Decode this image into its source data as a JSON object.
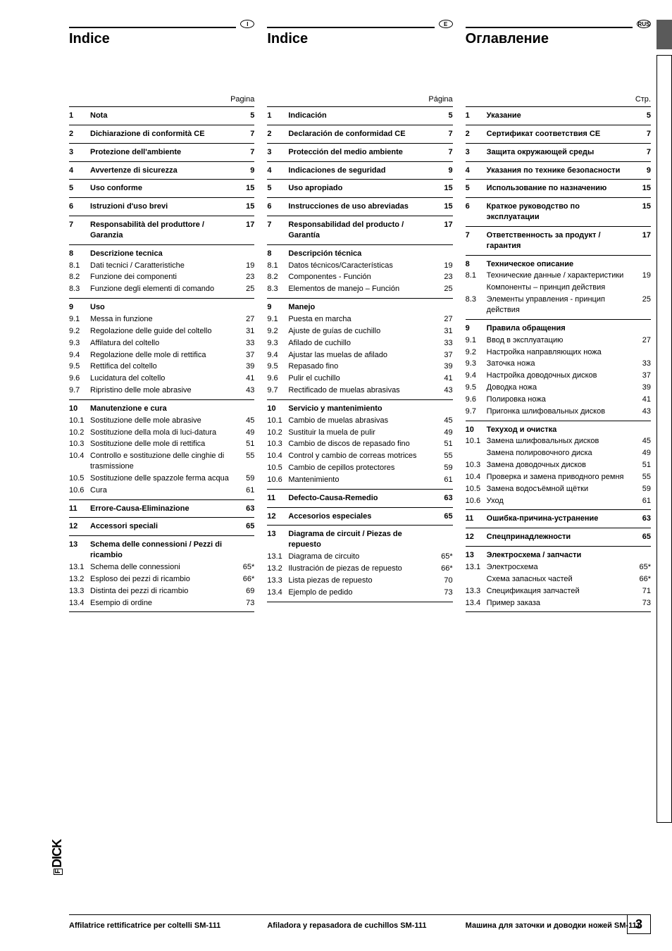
{
  "pageNumber": "3",
  "brand": "DICK",
  "columns": [
    {
      "badge": "I",
      "title": "Indice",
      "pageLabel": "Pagina",
      "footer": "Affilatrice rettificatrice per coltelli SM-111",
      "sections": [
        {
          "rule": true,
          "rows": [
            {
              "n": "1",
              "t": "Nota",
              "p": "5",
              "b": true
            }
          ]
        },
        {
          "rule": true,
          "rows": [
            {
              "n": "2",
              "t": "Dichiarazione di conformità CE",
              "p": "7",
              "b": true
            }
          ]
        },
        {
          "rule": true,
          "rows": [
            {
              "n": "3",
              "t": "Protezione dell'ambiente",
              "p": "7",
              "b": true
            }
          ]
        },
        {
          "rule": true,
          "rows": [
            {
              "n": "4",
              "t": "Avvertenze di sicurezza",
              "p": "9",
              "b": true
            }
          ]
        },
        {
          "rule": true,
          "rows": [
            {
              "n": "5",
              "t": "Uso conforme",
              "p": "15",
              "b": true
            }
          ]
        },
        {
          "rule": true,
          "rows": [
            {
              "n": "6",
              "t": "Istruzioni d'uso brevi",
              "p": "15",
              "b": true
            }
          ]
        },
        {
          "rule": true,
          "rows": [
            {
              "n": "7",
              "t": "Responsabilità del produttore / Garanzia",
              "p": "17",
              "b": true
            }
          ]
        },
        {
          "rule": true,
          "rows": [
            {
              "n": "8",
              "t": "Descrizione tecnica",
              "p": "",
              "b": true
            },
            {
              "n": "8.1",
              "t": "Dati tecnici / Caratteristiche",
              "p": "19"
            },
            {
              "n": "8.2",
              "t": "Funzione dei componenti",
              "p": "23"
            },
            {
              "n": "8.3",
              "t": "Funzione degli elementi di comando",
              "p": "25"
            }
          ]
        },
        {
          "rule": true,
          "rows": [
            {
              "n": "9",
              "t": "Uso",
              "p": "",
              "b": true
            },
            {
              "n": "9.1",
              "t": "Messa in funzione",
              "p": "27"
            },
            {
              "n": "9.2",
              "t": "Regolazione delle guide del coltello",
              "p": "31"
            },
            {
              "n": "9.3",
              "t": "Affilatura del coltello",
              "p": "33"
            },
            {
              "n": "9.4",
              "t": "Regolazione delle mole di rettifica",
              "p": "37"
            },
            {
              "n": "9.5",
              "t": "Rettifica del coltello",
              "p": "39"
            },
            {
              "n": "9.6",
              "t": "Lucidatura del coltello",
              "p": "41"
            },
            {
              "n": "9.7",
              "t": "Ripristino delle mole abrasive",
              "p": "43"
            }
          ]
        },
        {
          "rule": true,
          "rows": [
            {
              "n": "10",
              "t": "Manutenzione e cura",
              "p": "",
              "b": true
            },
            {
              "n": "10.1",
              "t": "Sostituzione delle mole abrasive",
              "p": "45"
            },
            {
              "n": "10.2",
              "t": "Sostituzione della mola di luci-datura",
              "p": "49"
            },
            {
              "n": "10.3",
              "t": "Sostituzione delle mole di rettifica",
              "p": "51"
            },
            {
              "n": "10.4",
              "t": "Controllo e sostituzione delle cinghie di trasmissione",
              "p": "55"
            },
            {
              "n": "10.5",
              "t": "Sostituzione delle spazzole ferma acqua",
              "p": "59"
            },
            {
              "n": "10.6",
              "t": "Cura",
              "p": "61"
            }
          ]
        },
        {
          "rule": true,
          "rows": [
            {
              "n": "11",
              "t": "Errore-Causa-Eliminazione",
              "p": "63",
              "b": true
            }
          ]
        },
        {
          "rule": true,
          "rows": [
            {
              "n": "12",
              "t": "Accessori speciali",
              "p": "65",
              "b": true
            }
          ]
        },
        {
          "rule": true,
          "rows": [
            {
              "n": "13",
              "t": "Schema delle connessioni / Pezzi di ricambio",
              "p": "",
              "b": true
            },
            {
              "n": "13.1",
              "t": "Schema delle connessioni",
              "p": "65*"
            },
            {
              "n": "13.2",
              "t": "Esploso dei pezzi di ricambio",
              "p": "66*"
            },
            {
              "n": "13.3",
              "t": "Distinta dei pezzi di ricambio",
              "p": "69"
            },
            {
              "n": "13.4",
              "t": "Esempio di ordine",
              "p": "73"
            }
          ]
        },
        {
          "rule": true,
          "rows": []
        }
      ]
    },
    {
      "badge": "E",
      "title": "Indice",
      "pageLabel": "Página",
      "footer": "Afiladora y repasadora de cuchillos SM-111",
      "sections": [
        {
          "rule": true,
          "rows": [
            {
              "n": "1",
              "t": "Indicación",
              "p": "5",
              "b": true
            }
          ]
        },
        {
          "rule": true,
          "rows": [
            {
              "n": "2",
              "t": "Declaración de conformidad CE",
              "p": "7",
              "b": true
            }
          ]
        },
        {
          "rule": true,
          "rows": [
            {
              "n": "3",
              "t": "Protección del medio ambiente",
              "p": "7",
              "b": true
            }
          ]
        },
        {
          "rule": true,
          "rows": [
            {
              "n": "4",
              "t": "Indicaciones de seguridad",
              "p": "9",
              "b": true
            }
          ]
        },
        {
          "rule": true,
          "rows": [
            {
              "n": "5",
              "t": "Uso apropiado",
              "p": "15",
              "b": true
            }
          ]
        },
        {
          "rule": true,
          "rows": [
            {
              "n": "6",
              "t": "Instrucciones de uso abreviadas",
              "p": "15",
              "b": true
            }
          ]
        },
        {
          "rule": true,
          "rows": [
            {
              "n": "7",
              "t": "Responsabilidad del producto / Garantía",
              "p": "17",
              "b": true
            }
          ]
        },
        {
          "rule": true,
          "rows": [
            {
              "n": "8",
              "t": "Descripción técnica",
              "p": "",
              "b": true
            },
            {
              "n": "8.1",
              "t": "Datos técnicos/Características",
              "p": "19"
            },
            {
              "n": "8.2",
              "t": "Componentes - Función",
              "p": "23"
            },
            {
              "n": "8.3",
              "t": "Elementos de manejo – Función",
              "p": "25"
            }
          ]
        },
        {
          "rule": true,
          "rows": [
            {
              "n": "9",
              "t": "Manejo",
              "p": "",
              "b": true
            },
            {
              "n": "9.1",
              "t": "Puesta en marcha",
              "p": "27"
            },
            {
              "n": "9.2",
              "t": "Ajuste de guías de cuchillo",
              "p": "31"
            },
            {
              "n": "9.3",
              "t": "Afilado de cuchillo",
              "p": "33"
            },
            {
              "n": "9.4",
              "t": "Ajustar las muelas de afilado",
              "p": "37"
            },
            {
              "n": "9.5",
              "t": "Repasado fino",
              "p": "39"
            },
            {
              "n": "9.6",
              "t": "Pulir el cuchillo",
              "p": "41"
            },
            {
              "n": "9.7",
              "t": "Rectificado de muelas abrasivas",
              "p": "43"
            }
          ]
        },
        {
          "rule": true,
          "rows": [
            {
              "n": "10",
              "t": "Servicio y mantenimiento",
              "p": "",
              "b": true
            },
            {
              "n": "10.1",
              "t": "Cambio de muelas abrasivas",
              "p": "45"
            },
            {
              "n": "10.2",
              "t": "Sustituir la muela de pulir",
              "p": "49"
            },
            {
              "n": "10.3",
              "t": "Cambio de discos de repasado fino",
              "p": "51"
            },
            {
              "n": "10.4",
              "t": "Control y cambio de correas motrices",
              "p": "55"
            },
            {
              "n": "10.5",
              "t": "Cambio de cepillos protectores",
              "p": "59"
            },
            {
              "n": "10.6",
              "t": "Mantenimiento",
              "p": "61"
            }
          ]
        },
        {
          "rule": true,
          "rows": [
            {
              "n": "11",
              "t": "Defecto-Causa-Remedio",
              "p": "63",
              "b": true
            }
          ]
        },
        {
          "rule": true,
          "rows": [
            {
              "n": "12",
              "t": "Accesorios especiales",
              "p": "65",
              "b": true
            }
          ]
        },
        {
          "rule": true,
          "rows": [
            {
              "n": "13",
              "t": "Diagrama de circuit / Piezas de repuesto",
              "p": "",
              "b": true
            },
            {
              "n": "13.1",
              "t": "Diagrama de circuito",
              "p": "65*"
            },
            {
              "n": "13.2",
              "t": "Ilustración de piezas de repuesto",
              "p": "66*"
            },
            {
              "n": "13.3",
              "t": "Lista piezas de repuesto",
              "p": "70"
            },
            {
              "n": "13.4",
              "t": "Ejemplo de pedido",
              "p": "73"
            }
          ]
        },
        {
          "rule": true,
          "rows": []
        }
      ]
    },
    {
      "badge": "RUS",
      "title": "Оглавление",
      "pageLabel": "Стр.",
      "footer": "Машина для заточки и доводки ножей SM-111",
      "sections": [
        {
          "rule": true,
          "rows": [
            {
              "n": "1",
              "t": "Указание",
              "p": "5",
              "b": true
            }
          ]
        },
        {
          "rule": true,
          "rows": [
            {
              "n": "2",
              "t": "Сертификат соответствия СЕ",
              "p": "7",
              "b": true
            }
          ]
        },
        {
          "rule": true,
          "rows": [
            {
              "n": "3",
              "t": "Защита окружающей среды",
              "p": "7",
              "b": true
            }
          ]
        },
        {
          "rule": true,
          "rows": [
            {
              "n": "4",
              "t": "Указания по технике безопасности",
              "p": "9",
              "b": true
            }
          ]
        },
        {
          "rule": true,
          "rows": [
            {
              "n": "5",
              "t": "Использование по назначению",
              "p": "15",
              "b": true
            }
          ]
        },
        {
          "rule": true,
          "rows": [
            {
              "n": "6",
              "t": "Краткое руководство по эксплуатации",
              "p": "15",
              "b": true
            }
          ]
        },
        {
          "rule": true,
          "rows": [
            {
              "n": "7",
              "t": "Ответственность за продукт / гарантия",
              "p": "17",
              "b": true
            }
          ]
        },
        {
          "rule": true,
          "rows": [
            {
              "n": "8",
              "t": "Техническое описание",
              "p": "",
              "b": true
            },
            {
              "n": "8.1",
              "t": "Технические данные / характеристики",
              "p": "19"
            },
            {
              "n": "",
              "t": "Компоненты – принцип действия",
              "p": ""
            },
            {
              "n": "8.3",
              "t": "Элементы управления - принцип действия",
              "p": "25"
            }
          ]
        },
        {
          "rule": true,
          "rows": [
            {
              "n": "9",
              "t": "Правила обращения",
              "p": "",
              "b": true
            },
            {
              "n": "9.1",
              "t": "Ввод в эксплуатацию",
              "p": "27"
            },
            {
              "n": "9.2",
              "t": "Настройка направляющих ножа",
              "p": ""
            },
            {
              "n": "9.3",
              "t": "Заточка ножа",
              "p": "33"
            },
            {
              "n": "9.4",
              "t": "Настройка доводочных дисков",
              "p": "37"
            },
            {
              "n": "9.5",
              "t": "Доводка ножа",
              "p": "39"
            },
            {
              "n": "9.6",
              "t": "Полировка ножа",
              "p": "41"
            },
            {
              "n": "9.7",
              "t": "Пригонка шлифовальных дисков",
              "p": "43"
            }
          ]
        },
        {
          "rule": true,
          "rows": [
            {
              "n": "10",
              "t": "Техуход и очистка",
              "p": "",
              "b": true
            },
            {
              "n": "10.1",
              "t": "Замена шлифовальных дисков",
              "p": "45"
            },
            {
              "n": "",
              "t": "Замена полировочного диска",
              "p": "49"
            },
            {
              "n": "10.3",
              "t": "Замена доводочных дисков",
              "p": "51"
            },
            {
              "n": "10.4",
              "t": "Проверка и замена приводного ремня",
              "p": "55"
            },
            {
              "n": "10.5",
              "t": "Замена водосъёмной щётки",
              "p": "59"
            },
            {
              "n": "10.6",
              "t": "Уход",
              "p": "61"
            }
          ]
        },
        {
          "rule": true,
          "rows": [
            {
              "n": "11",
              "t": "Ошибка-причина-устранение",
              "p": "63",
              "b": true
            }
          ]
        },
        {
          "rule": true,
          "rows": [
            {
              "n": "12",
              "t": "Спецпринадлежности",
              "p": "65",
              "b": true
            }
          ]
        },
        {
          "rule": true,
          "rows": [
            {
              "n": "13",
              "t": "Электросхема / запчасти",
              "p": "",
              "b": true
            },
            {
              "n": "13.1",
              "t": "Электросхема",
              "p": "65*"
            },
            {
              "n": "",
              "t": "Схема запасных частей",
              "p": "66*"
            },
            {
              "n": "13.3",
              "t": "Спецификация запчастей",
              "p": "71"
            },
            {
              "n": "13.4",
              "t": "Пример заказа",
              "p": "73"
            }
          ]
        },
        {
          "rule": true,
          "rows": []
        }
      ]
    }
  ]
}
